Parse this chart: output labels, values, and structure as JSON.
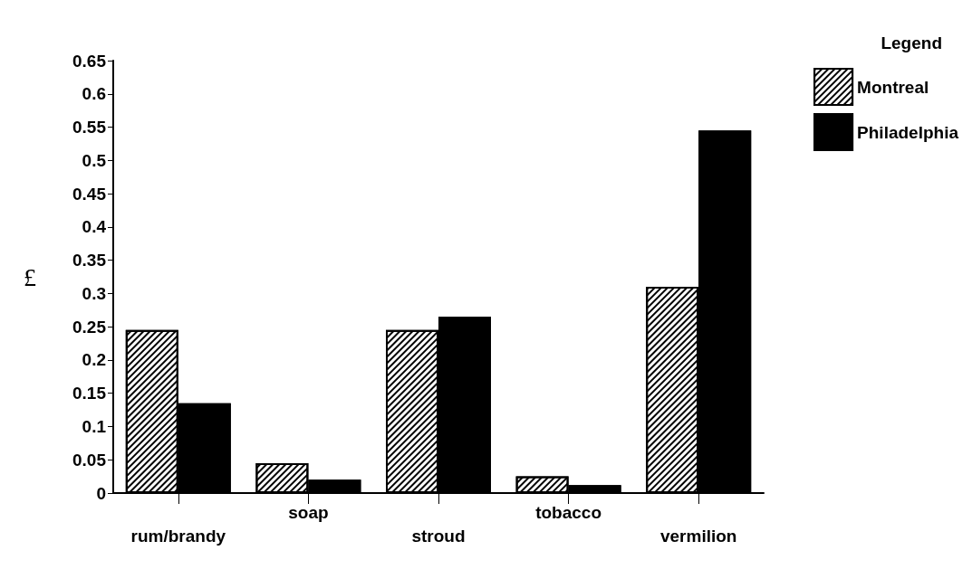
{
  "chart_data": {
    "type": "bar",
    "ylabel": "£",
    "legend_title": "Legend",
    "categories": [
      "rum/brandy",
      "soap",
      "stroud",
      "tobacco",
      "vermilion"
    ],
    "series": [
      {
        "name": "Montreal",
        "color": "#ffffff",
        "values": [
          0.245,
          0.045,
          0.245,
          0.025,
          0.31
        ]
      },
      {
        "name": "Philadelphia",
        "color": "#000000",
        "values": [
          0.135,
          0.02,
          0.265,
          0.012,
          0.545
        ]
      }
    ],
    "ylim": [
      0,
      0.65
    ],
    "yticks": [
      0,
      0.05,
      0.1,
      0.15,
      0.2,
      0.25,
      0.3,
      0.35,
      0.4,
      0.45,
      0.5,
      0.55,
      0.6,
      0.65
    ],
    "grid": false,
    "legend": "top right"
  }
}
